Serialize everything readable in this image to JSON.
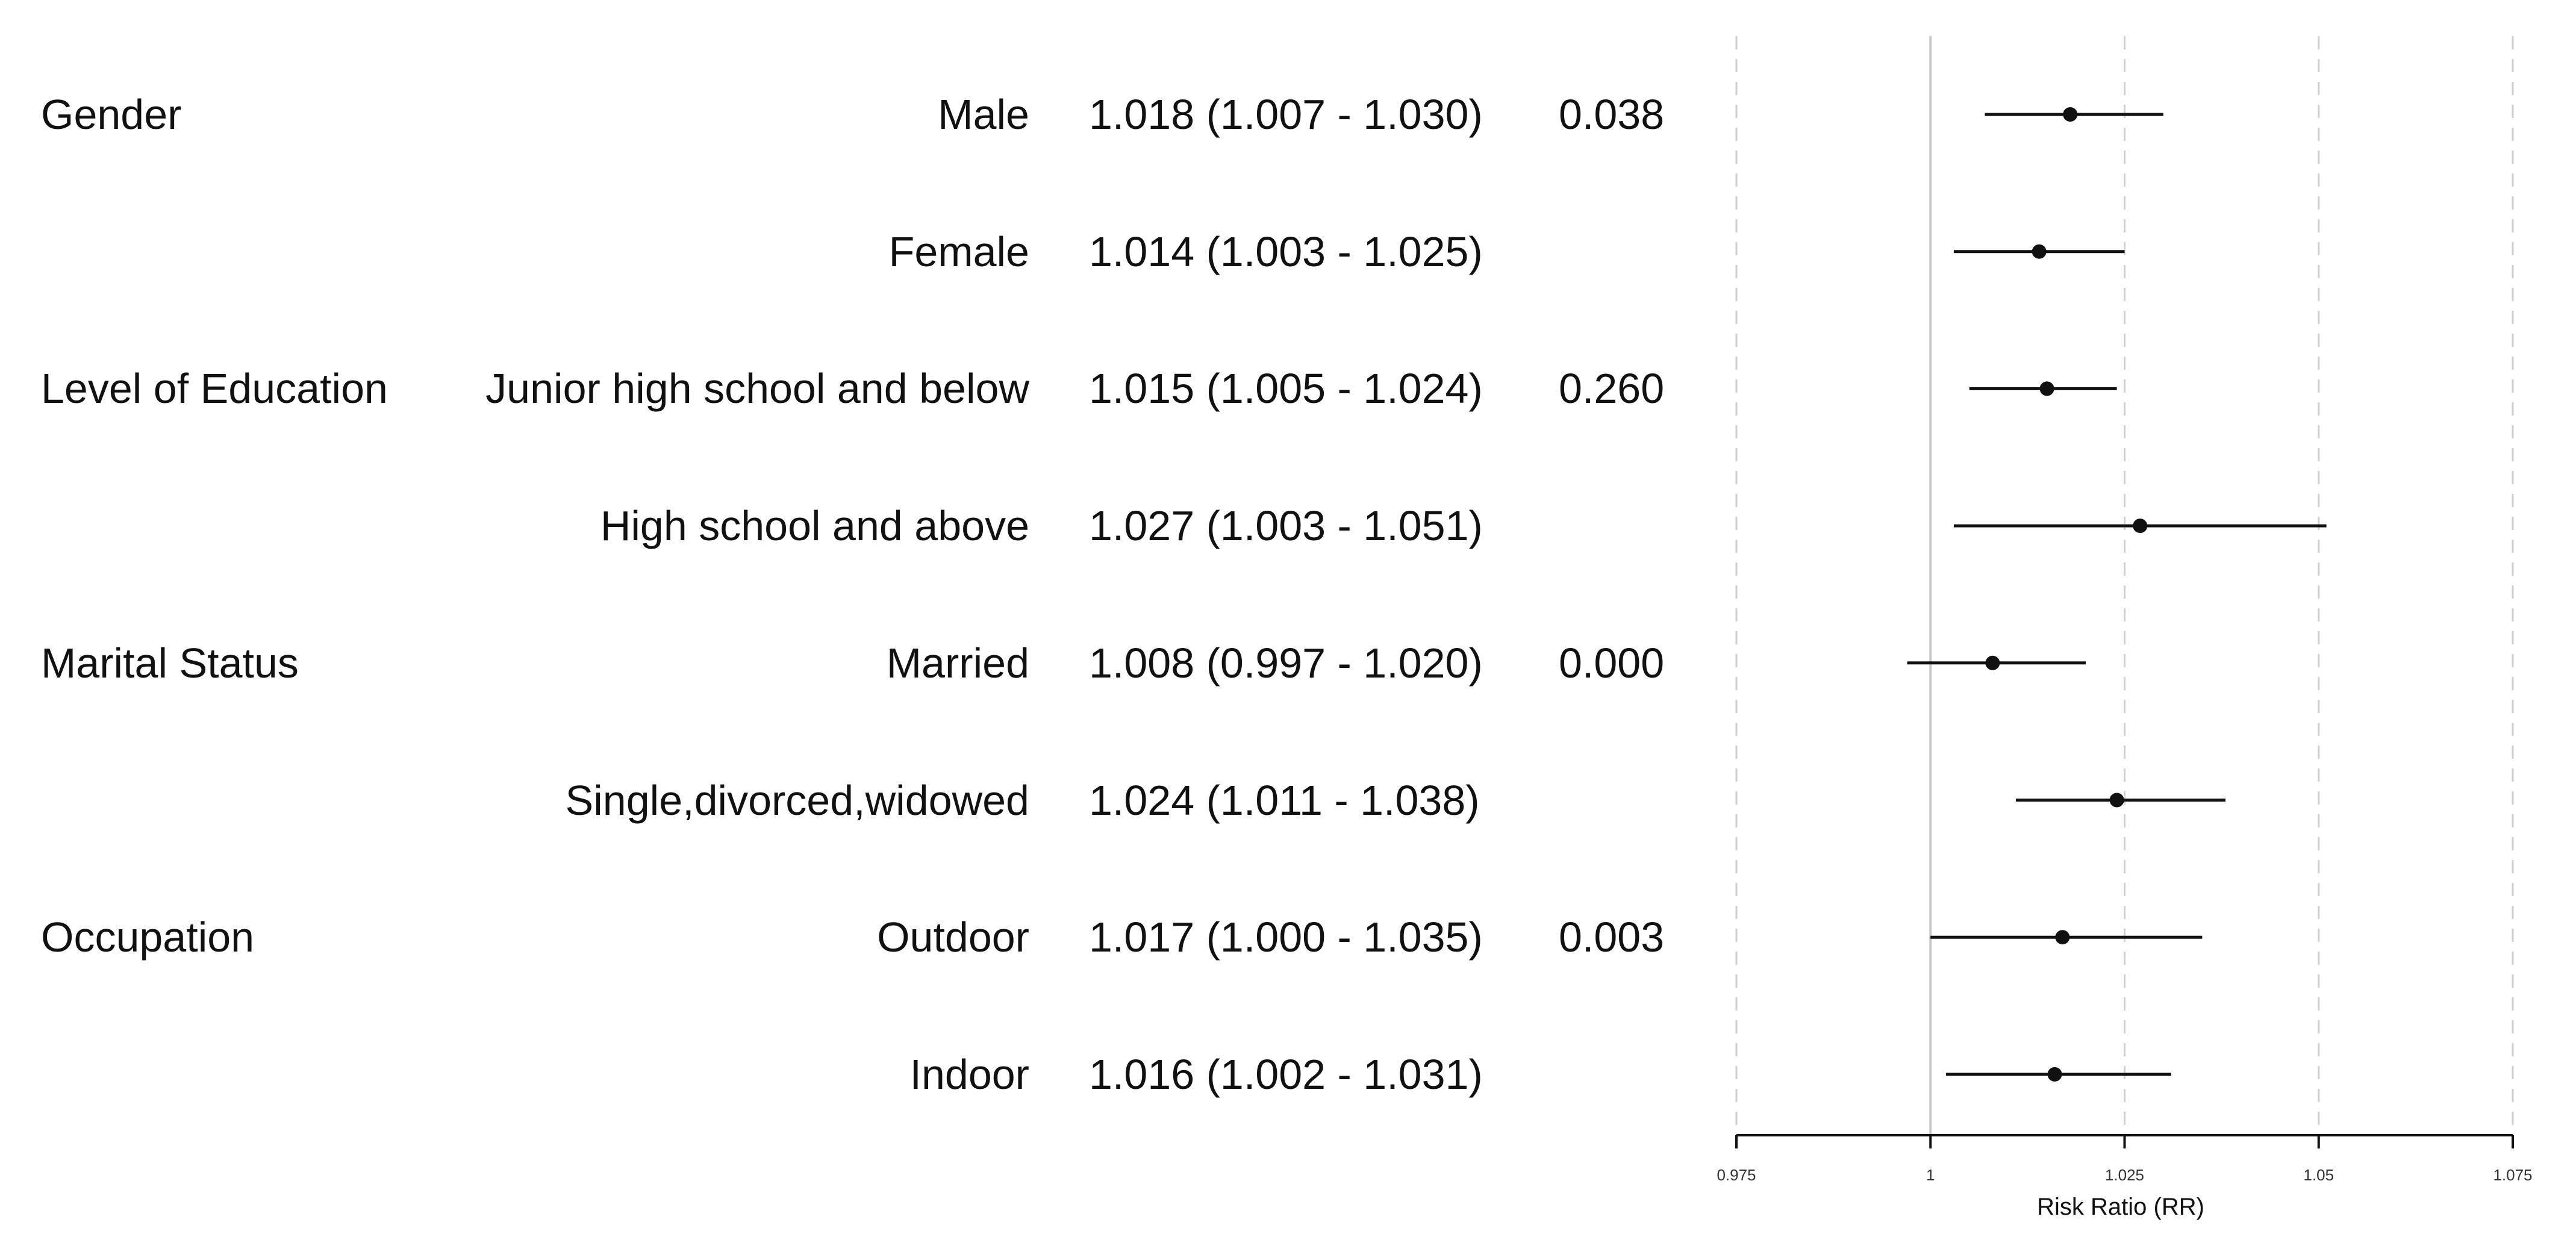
{
  "chart_data": {
    "type": "forest",
    "xlabel": "Risk Ratio (RR)",
    "xlim": [
      0.975,
      1.075
    ],
    "xticks": [
      0.975,
      1,
      1.025,
      1.05,
      1.075
    ],
    "xtick_labels": [
      "0.975",
      "1",
      "1.025",
      "1.05",
      "1.075"
    ],
    "reference_line": 1,
    "grid": "vertical dashed",
    "rows": [
      {
        "group": "Gender",
        "subgroup": "Male",
        "estimate_text": "1.018 (1.007 - 1.030)",
        "p_value": "0.038",
        "rr": 1.018,
        "lower": 1.007,
        "upper": 1.03
      },
      {
        "group": "",
        "subgroup": "Female",
        "estimate_text": "1.014 (1.003 - 1.025)",
        "p_value": "",
        "rr": 1.014,
        "lower": 1.003,
        "upper": 1.025
      },
      {
        "group": "Level of Education",
        "subgroup": "Junior high school and below",
        "estimate_text": "1.015 (1.005 - 1.024)",
        "p_value": "0.260",
        "rr": 1.015,
        "lower": 1.005,
        "upper": 1.024
      },
      {
        "group": "",
        "subgroup": "High school and above",
        "estimate_text": "1.027 (1.003 - 1.051)",
        "p_value": "",
        "rr": 1.027,
        "lower": 1.003,
        "upper": 1.051
      },
      {
        "group": "Marital Status",
        "subgroup": "Married",
        "estimate_text": "1.008 (0.997 - 1.020)",
        "p_value": "0.000",
        "rr": 1.008,
        "lower": 0.997,
        "upper": 1.02
      },
      {
        "group": "",
        "subgroup": "Single,divorced,widowed",
        "estimate_text": "1.024 (1.011 - 1.038)",
        "p_value": "",
        "rr": 1.024,
        "lower": 1.011,
        "upper": 1.038
      },
      {
        "group": "Occupation",
        "subgroup": "Outdoor",
        "estimate_text": "1.017 (1.000 - 1.035)",
        "p_value": "0.003",
        "rr": 1.017,
        "lower": 1.0,
        "upper": 1.035
      },
      {
        "group": "",
        "subgroup": "Indoor",
        "estimate_text": "1.016 (1.002 - 1.031)",
        "p_value": "",
        "rr": 1.016,
        "lower": 1.002,
        "upper": 1.031
      }
    ]
  }
}
